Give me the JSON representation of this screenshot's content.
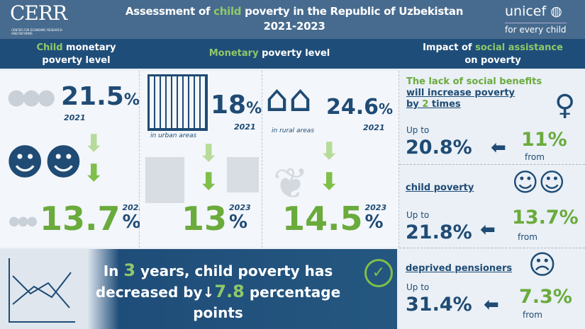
{
  "header": {
    "logo_left": "CERR",
    "logo_left_sub": "CENTER FOR ECONOMIC RESEARCH AND REFORMS",
    "title_pre": "Assessment of ",
    "title_hl": "child",
    "title_post": " poverty in the Republic of Uzbekistan",
    "title_years": "2021-2023",
    "logo_right": "unicef",
    "logo_right_tagline": "for every child"
  },
  "sections": [
    {
      "hl": "Child",
      "rest": " monetary",
      "line2": "poverty level"
    },
    {
      "hl": "Monetary",
      "rest": " poverty level"
    },
    {
      "pre": "Impact of ",
      "hl": "social assistance",
      "line2": "on poverty"
    }
  ],
  "child": {
    "v2021": "21.5",
    "y2021": "2021",
    "v2023": "13.7",
    "y2023": "2023",
    "pct": "%"
  },
  "urban": {
    "v2021": "18",
    "y2021": "2021",
    "label": "in urban areas",
    "v2023": "13",
    "y2023": "2023",
    "pct": "%"
  },
  "rural": {
    "v2021": "24.6",
    "y2021": "2021",
    "label": "in rural areas",
    "v2023": "14.5",
    "y2023": "2023",
    "pct": "%"
  },
  "banner": {
    "l1a": "In ",
    "l1n": "3",
    "l1b": " years, child poverty has",
    "l2a": "decreased by",
    "l2arrow": "↓",
    "l2n": "7.8",
    "l2b": " percentage",
    "l3": "points"
  },
  "impact": {
    "headline_1": "The lack of social benefits",
    "headline_2": "will increase poverty",
    "headline_3a": "by ",
    "headline_3n": "2",
    "headline_3b": " times",
    "items": [
      {
        "label": "",
        "upto": "Up to",
        "to": "20.8%",
        "from_val": "11%",
        "from": "from"
      },
      {
        "label": "child poverty",
        "upto": "Up to",
        "to": "21.8%",
        "from_val": "13.7%",
        "from": "from"
      },
      {
        "label": "deprived pensioners",
        "upto": "Up to",
        "to": "31.4%",
        "from_val": "7.3%",
        "from": "from"
      }
    ]
  },
  "colors": {
    "dark_blue": "#1f4b74",
    "green": "#6aab3c",
    "header": "#476b8e"
  }
}
